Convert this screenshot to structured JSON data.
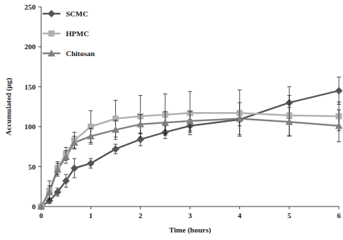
{
  "chart_data": {
    "type": "line",
    "x_label": "Time (hours)",
    "y_label": "Accumulated (µg)",
    "x": [
      0,
      0.167,
      0.33,
      0.5,
      0.67,
      1,
      1.5,
      2,
      2.5,
      3,
      4,
      5,
      6
    ],
    "series": [
      {
        "name": "SCMC",
        "color": "#555555",
        "marker": "diamond",
        "values": [
          0,
          7,
          18,
          32,
          48,
          54,
          72,
          84,
          93,
          101,
          109,
          130,
          145
        ],
        "errors": [
          0,
          3,
          5,
          8,
          12,
          6,
          6,
          8,
          8,
          8,
          8,
          20,
          17
        ]
      },
      {
        "name": "HPMC",
        "color": "#b0b0b0",
        "marker": "square",
        "values": [
          0,
          20,
          48,
          66,
          83,
          100,
          110,
          113,
          115,
          117,
          117,
          114,
          113
        ],
        "errors": [
          0,
          12,
          8,
          8,
          10,
          20,
          23,
          26,
          26,
          27,
          29,
          25,
          18
        ]
      },
      {
        "name": "Chitosan",
        "color": "#808080",
        "marker": "triangle",
        "values": [
          0,
          18,
          46,
          62,
          80,
          88,
          96,
          103,
          105,
          107,
          110,
          106,
          101
        ],
        "errors": [
          0,
          8,
          8,
          8,
          8,
          10,
          12,
          12,
          14,
          12,
          20,
          18,
          20
        ]
      }
    ],
    "xlim": [
      0,
      6
    ],
    "xticks": [
      0,
      1,
      2,
      3,
      4,
      5,
      6
    ],
    "ylim": [
      0,
      250
    ],
    "yticks": [
      0,
      50,
      100,
      150,
      200,
      250
    ],
    "grid": false,
    "legend": "upper left"
  }
}
